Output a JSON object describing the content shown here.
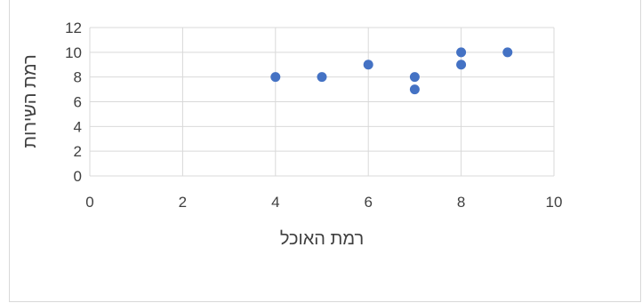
{
  "chart_data": {
    "type": "scatter",
    "title": "",
    "xlabel": "רמת האוכל",
    "ylabel": "רמת השירות",
    "xlim": [
      0,
      10
    ],
    "ylim": [
      0,
      12
    ],
    "x_ticks": [
      0,
      2,
      4,
      6,
      8,
      10
    ],
    "y_ticks": [
      0,
      2,
      4,
      6,
      8,
      10,
      12
    ],
    "grid": true,
    "legend": "none",
    "series": [
      {
        "color": "#4472c4",
        "points": [
          {
            "x": 4,
            "y": 8
          },
          {
            "x": 5,
            "y": 8
          },
          {
            "x": 6,
            "y": 9
          },
          {
            "x": 7,
            "y": 8
          },
          {
            "x": 7,
            "y": 7
          },
          {
            "x": 8,
            "y": 10
          },
          {
            "x": 8,
            "y": 9
          },
          {
            "x": 9,
            "y": 10
          }
        ]
      }
    ],
    "gridline_color": "#d9d9d9"
  }
}
